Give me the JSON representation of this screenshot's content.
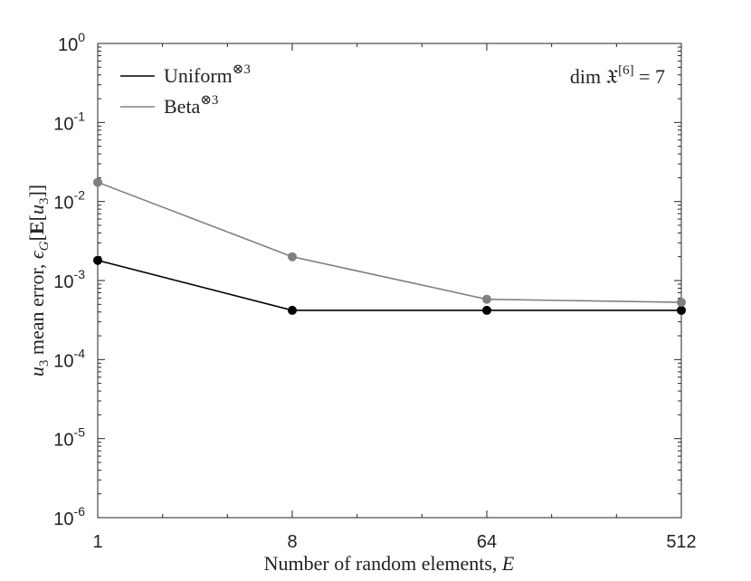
{
  "chart_data": {
    "type": "line",
    "x_scale": "log2",
    "y_scale": "log10",
    "x": [
      1,
      8,
      64,
      512
    ],
    "xlim": [
      1,
      512
    ],
    "ylim": [
      1e-06,
      1
    ],
    "x_ticks": [
      {
        "value": 1,
        "label": "1"
      },
      {
        "value": 8,
        "label": "8"
      },
      {
        "value": 64,
        "label": "64"
      },
      {
        "value": 512,
        "label": "512"
      }
    ],
    "y_ticks": [
      {
        "value": 1,
        "base": "10",
        "exp": "0"
      },
      {
        "value": 0.1,
        "base": "10",
        "exp": "-1"
      },
      {
        "value": 0.01,
        "base": "10",
        "exp": "-2"
      },
      {
        "value": 0.001,
        "base": "10",
        "exp": "-3"
      },
      {
        "value": 0.0001,
        "base": "10",
        "exp": "-4"
      },
      {
        "value": 1e-05,
        "base": "10",
        "exp": "-5"
      },
      {
        "value": 1e-06,
        "base": "10",
        "exp": "-6"
      }
    ],
    "xlabel": "Number of random elements, E",
    "ylabel": "u3 mean error, ϵG[E[u3]]",
    "annotation": "dim 𝔛[6] = 7",
    "legend_position": "top-left",
    "grid": false,
    "series": [
      {
        "name": "Uniform⊗3",
        "color": "#000000",
        "values": [
          0.0018,
          0.00042,
          0.00042,
          0.00042
        ]
      },
      {
        "name": "Beta⊗3",
        "color": "#808080",
        "values": [
          0.0175,
          0.002,
          0.00058,
          0.00053
        ]
      }
    ]
  }
}
